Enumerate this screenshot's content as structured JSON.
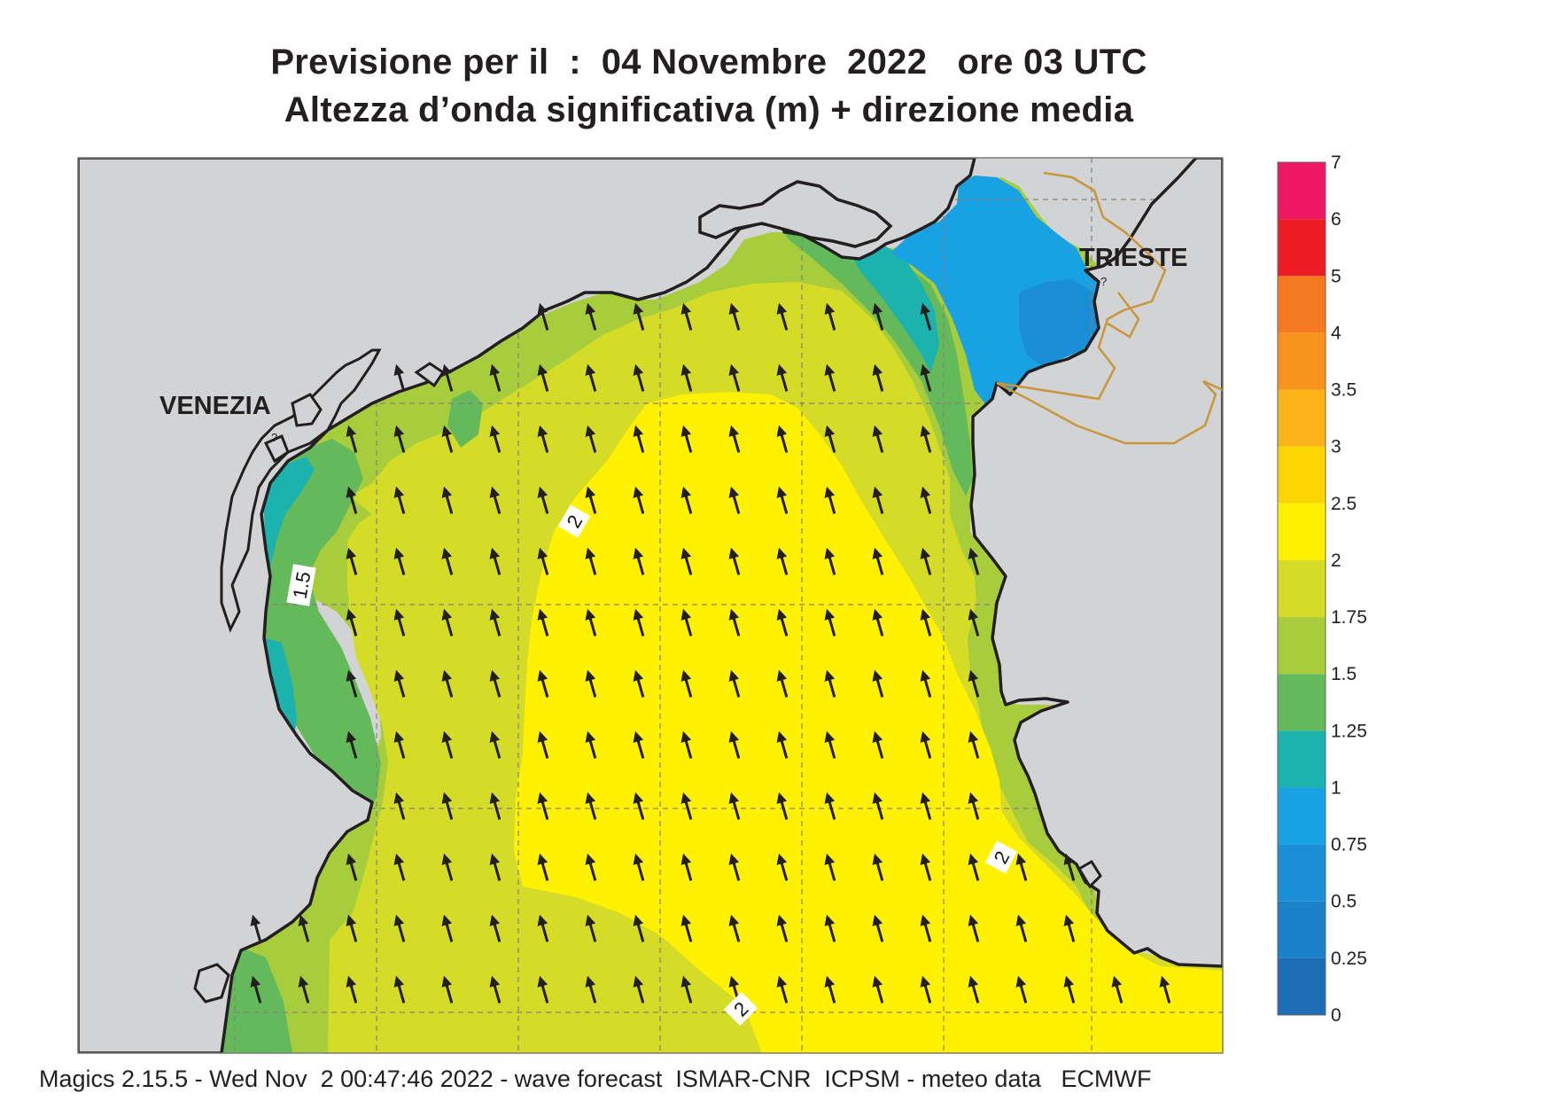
{
  "header": {
    "title_line1": "Previsione per il  :  04 Novembre  2022   ore 03 UTC",
    "title_line2": "Altezza d’onda significativa (m) + direzione media"
  },
  "map": {
    "region": "Northern Adriatic Sea",
    "labels": {
      "venezia": "VENEZIA",
      "trieste": "TRIESTE",
      "minor_marker": "?"
    },
    "contour_labels": [
      "2",
      "1.5",
      "2",
      "2"
    ],
    "colors": {
      "land": "#d2d3d5",
      "coast": "#231f20",
      "border": "#c8963c",
      "grid": "#8a8078"
    },
    "arrow_direction": "toward north-northwest"
  },
  "colorbar": {
    "label_set": [
      "0",
      "0.25",
      "0.5",
      "0.75",
      "1",
      "1.25",
      "1.5",
      "1.75",
      "2",
      "2.5",
      "3",
      "3.5",
      "4",
      "5",
      "6",
      "7"
    ],
    "classes": [
      {
        "from": "0",
        "to": "0.25",
        "color": "#1c6cb6"
      },
      {
        "from": "0.25",
        "to": "0.5",
        "color": "#1a80c8"
      },
      {
        "from": "0.5",
        "to": "0.75",
        "color": "#1a8fd6"
      },
      {
        "from": "0.75",
        "to": "1",
        "color": "#19a2e3"
      },
      {
        "from": "1",
        "to": "1.25",
        "color": "#1cb2ae"
      },
      {
        "from": "1.25",
        "to": "1.5",
        "color": "#64b95a"
      },
      {
        "from": "1.5",
        "to": "1.75",
        "color": "#a8cd3c"
      },
      {
        "from": "1.75",
        "to": "2",
        "color": "#d5dc28"
      },
      {
        "from": "2",
        "to": "2.5",
        "color": "#fff100"
      },
      {
        "from": "2.5",
        "to": "3",
        "color": "#fcd503"
      },
      {
        "from": "3",
        "to": "3.5",
        "color": "#fab319"
      },
      {
        "from": "3.5",
        "to": "4",
        "color": "#f7941d"
      },
      {
        "from": "4",
        "to": "5",
        "color": "#f47921"
      },
      {
        "from": "5",
        "to": "6",
        "color": "#ed1c24"
      },
      {
        "from": "6",
        "to": "7",
        "color": "#ed1763"
      }
    ]
  },
  "footer": {
    "text": "Magics 2.15.5 - Wed Nov  2 00:47:46 2022 - wave forecast  ISMAR-CNR  ICPSM - meteo data   ECMWF"
  }
}
